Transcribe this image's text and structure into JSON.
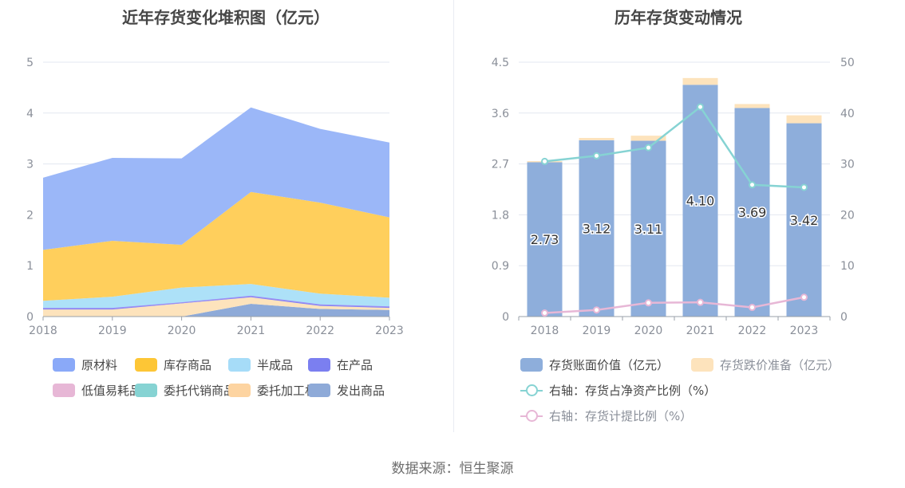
{
  "left": {
    "title": "近年存货变化堆积图（亿元）",
    "chart_data": {
      "type": "area",
      "stacked": true,
      "categories": [
        "2018",
        "2019",
        "2020",
        "2021",
        "2022",
        "2023"
      ],
      "ylim": [
        0,
        5
      ],
      "yticks": [
        "0",
        "1",
        "2",
        "3",
        "4",
        "5"
      ],
      "grid": true,
      "legend_position": "bottom",
      "series": [
        {
          "name": "发出商品",
          "color": "#8eaad8",
          "values": [
            0.0,
            0.0,
            0.0,
            0.25,
            0.15,
            0.13
          ]
        },
        {
          "name": "委托加工材料",
          "color": "#fde3bc",
          "values": [
            0.14,
            0.14,
            0.26,
            0.13,
            0.06,
            0.04
          ]
        },
        {
          "name": "委托代销商品",
          "color": "#86d3d3",
          "values": [
            0.0,
            0.0,
            0.0,
            0.0,
            0.0,
            0.0
          ]
        },
        {
          "name": "低值易耗品",
          "color": "#e7b7d6",
          "values": [
            0.0,
            0.0,
            0.0,
            0.0,
            0.0,
            0.0
          ]
        },
        {
          "name": "在产品",
          "color": "#7b7ff0",
          "values": [
            0.03,
            0.03,
            0.02,
            0.03,
            0.03,
            0.03
          ]
        },
        {
          "name": "半成品",
          "color": "#ade1f8",
          "values": [
            0.14,
            0.22,
            0.29,
            0.23,
            0.21,
            0.17
          ]
        },
        {
          "name": "库存商品",
          "color": "#ffcf5c",
          "values": [
            1.0,
            1.1,
            0.84,
            1.81,
            1.79,
            1.58
          ]
        },
        {
          "name": "原材料",
          "color": "#9bb7f8",
          "values": [
            1.42,
            1.63,
            1.7,
            1.66,
            1.45,
            1.47
          ]
        }
      ]
    },
    "legend": [
      {
        "name": "原材料",
        "color": "#8aa9f8"
      },
      {
        "name": "库存商品",
        "color": "#fdc636"
      },
      {
        "name": "半成品",
        "color": "#a6dcf8"
      },
      {
        "name": "在产品",
        "color": "#7b7ff0"
      },
      {
        "name": "低值易耗品",
        "color": "#e7b7d6"
      },
      {
        "name": "委托代销商品",
        "color": "#86d3d3"
      },
      {
        "name": "委托加工材料",
        "color": "#fdd4a1"
      },
      {
        "name": "发出商品",
        "color": "#8eaad8"
      }
    ]
  },
  "right": {
    "title": "历年存货变动情况",
    "chart_data": {
      "type": "bar",
      "stacked": true,
      "categories": [
        "2018",
        "2019",
        "2020",
        "2021",
        "2022",
        "2023"
      ],
      "ylim_left": [
        0,
        4.5
      ],
      "yticks_left": [
        "0",
        "0.9",
        "1.8",
        "2.7",
        "3.6",
        "4.5"
      ],
      "ylim_right": [
        0,
        50
      ],
      "yticks_right": [
        "0",
        "10",
        "20",
        "30",
        "40",
        "50"
      ],
      "grid": true,
      "legend_position": "bottom",
      "series": [
        {
          "name": "存货账面价值（亿元）",
          "type": "bar",
          "axis": "left",
          "color": "#8eaedb",
          "values": [
            2.73,
            3.12,
            3.11,
            4.1,
            3.69,
            3.42
          ],
          "labels": [
            "2.73",
            "3.12",
            "3.11",
            "4.10",
            "3.69",
            "3.42"
          ]
        },
        {
          "name": "存货跌价准备（亿元）",
          "type": "bar",
          "axis": "left",
          "color": "#fde3bc",
          "values": [
            0.02,
            0.04,
            0.09,
            0.12,
            0.07,
            0.14
          ]
        },
        {
          "name": "右轴：存货占净资产比例（%）",
          "type": "line",
          "axis": "right",
          "color": "#86d3d3",
          "values": [
            30.5,
            31.6,
            33.2,
            41.2,
            25.9,
            25.4
          ]
        },
        {
          "name": "右轴：存货计提比例（%）",
          "type": "line",
          "axis": "right",
          "color": "#e7b7d6",
          "values": [
            0.7,
            1.3,
            2.7,
            2.8,
            1.8,
            3.8
          ]
        }
      ]
    }
  },
  "source": "数据来源：恒生聚源"
}
